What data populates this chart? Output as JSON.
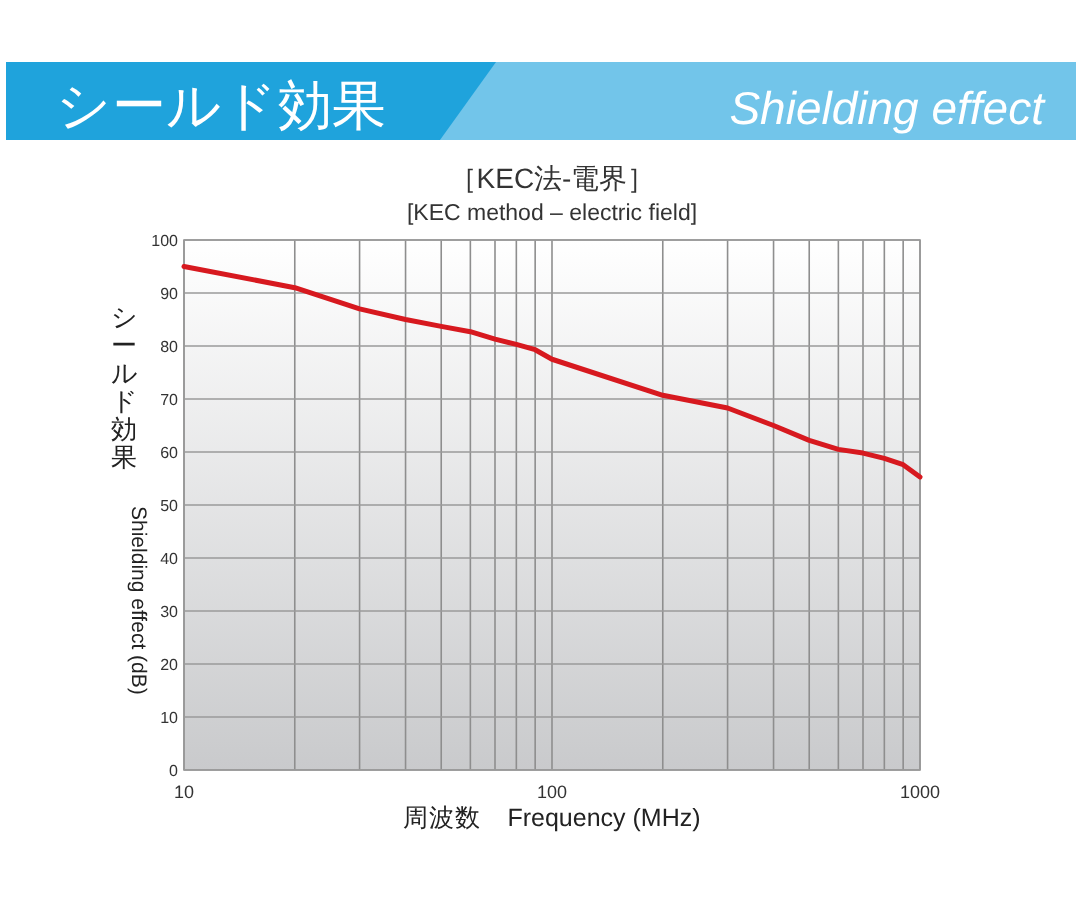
{
  "chart_data": {
    "type": "line",
    "title": "［KEC法-電界］",
    "subtitle": "[KEC method – electric field]",
    "annotations": [
      "シールド効果",
      "Shielding effect"
    ],
    "xlabel": "周波数　Frequency (MHz)",
    "ylabel": "シールド効果　Shielding effect (dB)",
    "x": [
      10,
      20,
      30,
      40,
      50,
      60,
      70,
      80,
      90,
      100,
      200,
      300,
      400,
      500,
      600,
      700,
      800,
      900,
      1000
    ],
    "series": [
      {
        "color": "#d7191f",
        "values": [
          95,
          91,
          87,
          85,
          83.7,
          82.7,
          81.3,
          80.3,
          79.3,
          77.5,
          70.7,
          68.3,
          65,
          62.2,
          60.5,
          59.8,
          58.8,
          57.6,
          55.3
        ]
      }
    ],
    "log": "x",
    "xlim": [
      10,
      1000
    ],
    "ylim": [
      0,
      100
    ],
    "xticks": [
      10,
      {
        "value": 20,
        "label": null
      },
      {
        "value": 30,
        "label": null
      },
      {
        "value": 40,
        "label": null
      },
      {
        "value": 50,
        "label": null
      },
      {
        "value": 60,
        "label": null
      },
      {
        "value": 70,
        "label": null
      },
      {
        "value": 80,
        "label": null
      },
      {
        "value": 90,
        "label": null
      },
      100,
      {
        "value": 200,
        "label": null
      },
      {
        "value": 300,
        "label": null
      },
      {
        "value": 400,
        "label": null
      },
      {
        "value": 500,
        "label": null
      },
      {
        "value": 600,
        "label": null
      },
      {
        "value": 700,
        "label": null
      },
      {
        "value": 800,
        "label": null
      },
      {
        "value": 900,
        "label": null
      },
      1000
    ],
    "yticks": [
      0,
      10,
      20,
      30,
      40,
      50,
      60,
      70,
      80,
      90,
      100
    ],
    "grid": true,
    "line_style": "solid",
    "marker": "none"
  }
}
